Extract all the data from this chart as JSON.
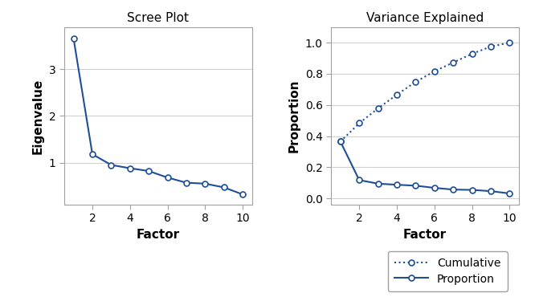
{
  "factors": [
    1,
    2,
    3,
    4,
    5,
    6,
    7,
    8,
    9,
    10
  ],
  "eigenvalues": [
    3.65,
    1.18,
    0.95,
    0.88,
    0.82,
    0.68,
    0.57,
    0.55,
    0.47,
    0.32
  ],
  "proportion": [
    0.365,
    0.118,
    0.095,
    0.088,
    0.082,
    0.068,
    0.057,
    0.055,
    0.047,
    0.032
  ],
  "cumulative": [
    0.365,
    0.483,
    0.578,
    0.666,
    0.748,
    0.816,
    0.873,
    0.928,
    0.975,
    1.0
  ],
  "line_color": "#1f4e96",
  "scree_title": "Scree Plot",
  "variance_title": "Variance Explained",
  "scree_xlabel": "Factor",
  "scree_ylabel": "Eigenvalue",
  "variance_xlabel": "Factor",
  "variance_ylabel": "Proportion",
  "bg_color": "#ffffff",
  "plot_bg_color": "#ffffff",
  "legend_labels": [
    "Cumulative",
    "Proportion"
  ],
  "xticks": [
    2,
    4,
    6,
    8,
    10
  ],
  "scree_yticks": [
    1,
    2,
    3
  ],
  "variance_yticks": [
    0.0,
    0.2,
    0.4,
    0.6,
    0.8,
    1.0
  ]
}
